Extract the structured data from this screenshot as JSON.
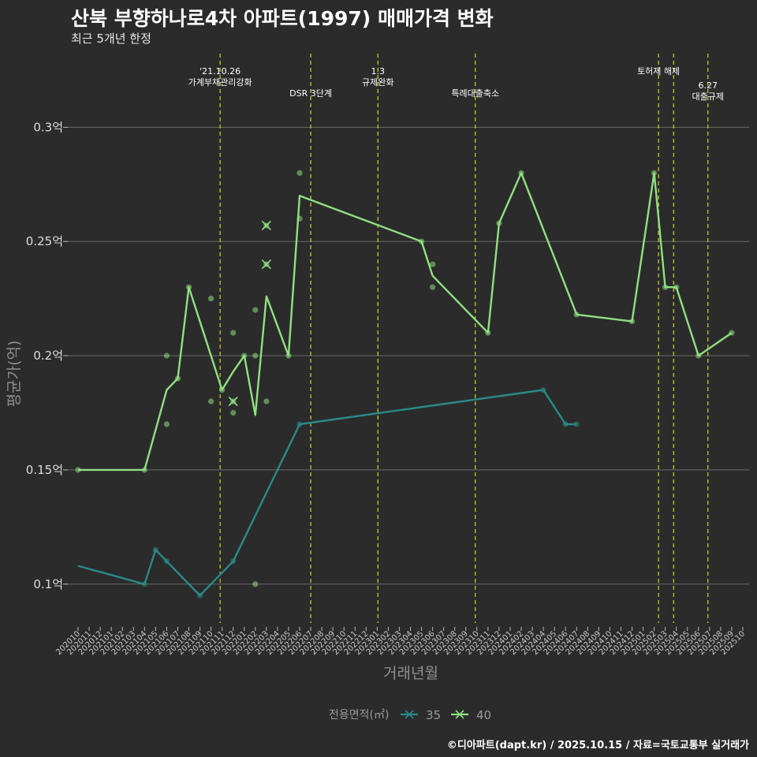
{
  "title": "산북 부향하나로4차 아파트(1997) 매매가격 변화",
  "subtitle": "최근 5개년 한정",
  "caption": "©디아파트(dapt.kr) / 2025.10.15 / 자료=국토교통부 실거래가",
  "chart_data": {
    "type": "line",
    "xlabel": "거래년월",
    "ylabel": "평균가(억)",
    "ylim": [
      0.083,
      0.335
    ],
    "yticks": [
      0.1,
      0.15,
      0.2,
      0.25,
      0.3
    ],
    "ytick_labels": [
      "0.1억",
      "0.15억",
      "0.2억",
      "0.25억",
      "0.3억"
    ],
    "x_start": "2020-10",
    "x_end": "2025-10",
    "x_tick_labels": [
      "202010",
      "202011",
      "202012",
      "202101",
      "202102",
      "202103",
      "202104",
      "202105",
      "202106",
      "202107",
      "202108",
      "202109",
      "202110",
      "202111",
      "202112",
      "202201",
      "202202",
      "202203",
      "202204",
      "202205",
      "202206",
      "202207",
      "202208",
      "202209",
      "202210",
      "202211",
      "202212",
      "202301",
      "202302",
      "202303",
      "202304",
      "202305",
      "202306",
      "202307",
      "202308",
      "202309",
      "202310",
      "202311",
      "202312",
      "202401",
      "202402",
      "202403",
      "202404",
      "202405",
      "202406",
      "202407",
      "202408",
      "202409",
      "202410",
      "202411",
      "202412",
      "202501",
      "202502",
      "202503",
      "202504",
      "202505",
      "202506",
      "202507",
      "202508",
      "202509",
      "202510"
    ],
    "legend_title": "전용면적(㎡)",
    "series": [
      {
        "name": "35",
        "color": "#2a8a8a",
        "line": [
          [
            "2020-10",
            0.108
          ],
          [
            "2021-04",
            0.1
          ],
          [
            "2021-05",
            0.115
          ],
          [
            "2021-06",
            0.11
          ],
          [
            "2021-09",
            0.095
          ],
          [
            "2021-12",
            0.11
          ],
          [
            "2022-06",
            0.17
          ],
          [
            "2024-04",
            0.185
          ],
          [
            "2024-06",
            0.17
          ],
          [
            "2024-07",
            0.17
          ]
        ],
        "points": [
          [
            "2021-04",
            0.1
          ],
          [
            "2021-05",
            0.115
          ],
          [
            "2021-06",
            0.11
          ],
          [
            "2021-09",
            0.095
          ],
          [
            "2021-12",
            0.11
          ],
          [
            "2022-06",
            0.17
          ],
          [
            "2024-04",
            0.185
          ],
          [
            "2024-06",
            0.17
          ],
          [
            "2024-07",
            0.17
          ]
        ],
        "cross_points": []
      },
      {
        "name": "40",
        "color": "#90e080",
        "line": [
          [
            "2020-10",
            0.15
          ],
          [
            "2021-04",
            0.15
          ],
          [
            "2021-06",
            0.185
          ],
          [
            "2021-07",
            0.19
          ],
          [
            "2021-08",
            0.23
          ],
          [
            "2021-11",
            0.185
          ],
          [
            "2021-12",
            0.193
          ],
          [
            "2022-01",
            0.2
          ],
          [
            "2022-02",
            0.174
          ],
          [
            "2022-03",
            0.226
          ],
          [
            "2022-05",
            0.2
          ],
          [
            "2022-06",
            0.27
          ],
          [
            "2023-05",
            0.25
          ],
          [
            "2023-06",
            0.235
          ],
          [
            "2023-11",
            0.21
          ],
          [
            "2023-12",
            0.258
          ],
          [
            "2024-02",
            0.28
          ],
          [
            "2024-07",
            0.218
          ],
          [
            "2024-12",
            0.215
          ],
          [
            "2025-02",
            0.28
          ],
          [
            "2025-03",
            0.23
          ],
          [
            "2025-04",
            0.23
          ],
          [
            "2025-06",
            0.2
          ],
          [
            "2025-09",
            0.21
          ]
        ],
        "points": [
          [
            "2020-10",
            0.15
          ],
          [
            "2021-04",
            0.15
          ],
          [
            "2021-06",
            0.2
          ],
          [
            "2021-06",
            0.17
          ],
          [
            "2021-07",
            0.19
          ],
          [
            "2021-08",
            0.23
          ],
          [
            "2021-10",
            0.225
          ],
          [
            "2021-10",
            0.18
          ],
          [
            "2021-11",
            0.185
          ],
          [
            "2021-12",
            0.21
          ],
          [
            "2021-12",
            0.175
          ],
          [
            "2022-01",
            0.2
          ],
          [
            "2022-02",
            0.22
          ],
          [
            "2022-02",
            0.2
          ],
          [
            "2022-02",
            0.1
          ],
          [
            "2022-03",
            0.18
          ],
          [
            "2022-05",
            0.2
          ],
          [
            "2022-06",
            0.28
          ],
          [
            "2022-06",
            0.26
          ],
          [
            "2023-05",
            0.25
          ],
          [
            "2023-06",
            0.24
          ],
          [
            "2023-06",
            0.23
          ],
          [
            "2023-11",
            0.21
          ],
          [
            "2023-12",
            0.258
          ],
          [
            "2024-02",
            0.28
          ],
          [
            "2024-07",
            0.218
          ],
          [
            "2024-12",
            0.215
          ],
          [
            "2025-02",
            0.28
          ],
          [
            "2025-03",
            0.23
          ],
          [
            "2025-04",
            0.23
          ],
          [
            "2025-06",
            0.2
          ],
          [
            "2025-09",
            0.21
          ]
        ],
        "cross_points": [
          [
            "2021-12",
            0.18
          ],
          [
            "2022-03",
            0.257
          ],
          [
            "2022-03",
            0.24
          ]
        ]
      }
    ],
    "annotations": [
      {
        "x": "2021-10-26",
        "lines": [
          "'21.10.26",
          "가계부채관리강화"
        ],
        "row": 1
      },
      {
        "x": "2022-07-01",
        "lines": [
          "DSR 3단계"
        ],
        "row": 2
      },
      {
        "x": "2023-01-03",
        "lines": [
          "1.3",
          "규제완화"
        ],
        "row": 1
      },
      {
        "x": "2023-09-27",
        "lines": [
          "특례대출축소"
        ],
        "row": 2
      },
      {
        "x": "2025-02-13",
        "lines": [
          "토허제 해제"
        ],
        "row": 1
      },
      {
        "x": "2025-03-24",
        "lines": [],
        "row": 1
      },
      {
        "x": "2025-06-27",
        "lines": [
          "6.27",
          "대출규제"
        ],
        "row": 3
      }
    ]
  }
}
